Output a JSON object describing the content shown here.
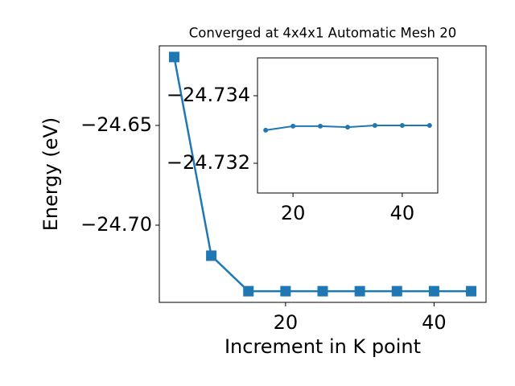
{
  "chart_data": [
    {
      "type": "line",
      "title": "Converged at 4x4x1 Automatic Mesh 20",
      "xlabel": "Increment in K point",
      "ylabel": "Energy (eV)",
      "x": [
        5,
        10,
        15,
        20,
        25,
        30,
        35,
        40,
        45
      ],
      "series": [
        {
          "color": "#1f77b4",
          "marker": "square",
          "values": [
            -24.6157,
            -24.7153,
            -24.7331,
            -24.7331,
            -24.7331,
            -24.7331,
            -24.7331,
            -24.7331,
            -24.7331
          ]
        }
      ],
      "xlim": [
        3,
        47
      ],
      "ylim": [
        -24.7387,
        -24.6101
      ],
      "xticks": [
        20,
        40
      ],
      "yticks": [
        {
          "value": -24.65,
          "label": "−24.65"
        },
        {
          "value": -24.7,
          "label": "−24.70"
        }
      ]
    },
    {
      "type": "line",
      "x": [
        15,
        20,
        25,
        30,
        35,
        40,
        45
      ],
      "series": [
        {
          "color": "#1f77b4",
          "marker": "circle",
          "values": [
            -24.73298,
            -24.7331,
            -24.7331,
            -24.73307,
            -24.73312,
            -24.73312,
            -24.73312
          ]
        }
      ],
      "xlim": [
        13.5,
        46.5
      ],
      "ylim": [
        -24.73112,
        -24.73512
      ],
      "xticks": [
        20,
        40
      ],
      "yticks": [
        {
          "value": -24.734,
          "label": "−24.734"
        },
        {
          "value": -24.732,
          "label": "−24.732"
        }
      ]
    }
  ]
}
